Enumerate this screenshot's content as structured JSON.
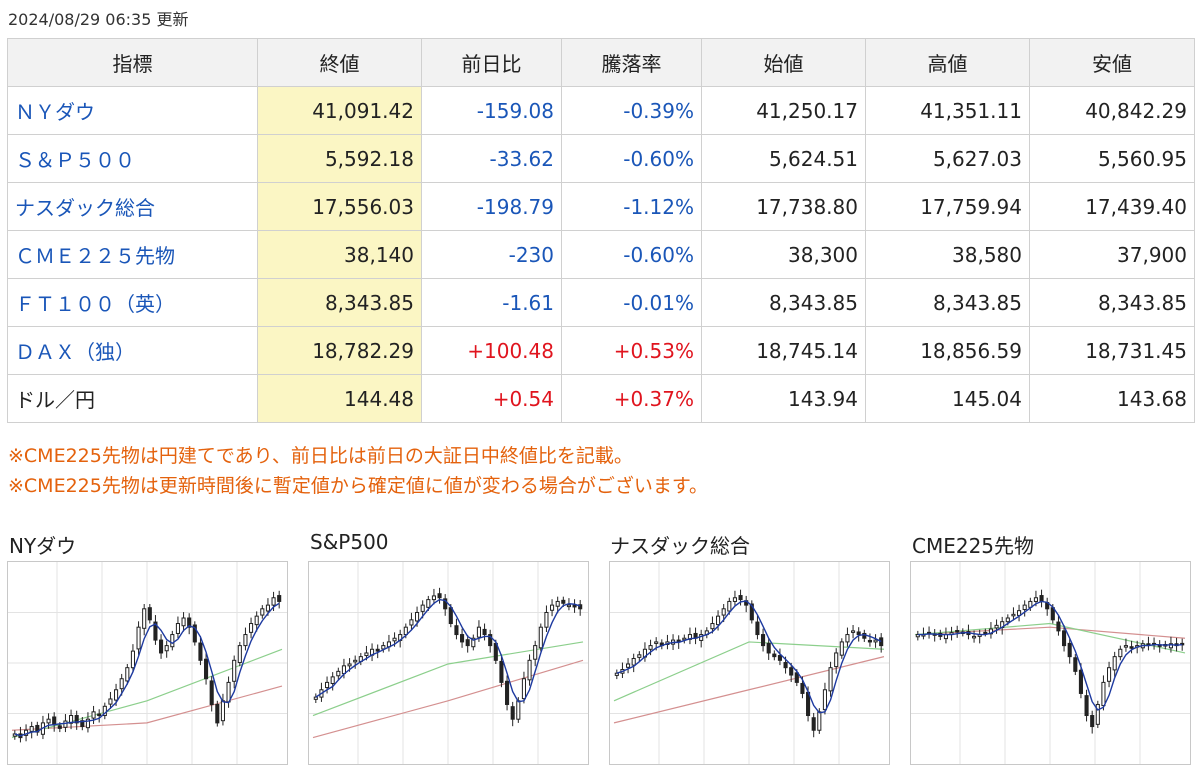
{
  "updated": "2024/08/29 06:35 更新",
  "table": {
    "headers": [
      "指標",
      "終値",
      "前日比",
      "騰落率",
      "始値",
      "高値",
      "安値"
    ],
    "rows": [
      {
        "name": "ＮＹダウ",
        "link": true,
        "close": "41,091.42",
        "change": "-159.08",
        "rate": "-0.39%",
        "open": "41,250.17",
        "high": "41,351.11",
        "low": "40,842.29",
        "dir": "neg"
      },
      {
        "name": "Ｓ＆Ｐ５００",
        "link": true,
        "close": "5,592.18",
        "change": "-33.62",
        "rate": "-0.60%",
        "open": "5,624.51",
        "high": "5,627.03",
        "low": "5,560.95",
        "dir": "neg"
      },
      {
        "name": "ナスダック総合",
        "link": true,
        "close": "17,556.03",
        "change": "-198.79",
        "rate": "-1.12%",
        "open": "17,738.80",
        "high": "17,759.94",
        "low": "17,439.40",
        "dir": "neg"
      },
      {
        "name": "ＣＭＥ２２５先物",
        "link": true,
        "close": "38,140",
        "change": "-230",
        "rate": "-0.60%",
        "open": "38,300",
        "high": "38,580",
        "low": "37,900",
        "dir": "neg"
      },
      {
        "name": "ＦＴ１００（英）",
        "link": true,
        "close": "8,343.85",
        "change": "-1.61",
        "rate": "-0.01%",
        "open": "8,343.85",
        "high": "8,343.85",
        "low": "8,343.85",
        "dir": "neg"
      },
      {
        "name": "ＤＡＸ（独）",
        "link": true,
        "close": "18,782.29",
        "change": "+100.48",
        "rate": "+0.53%",
        "open": "18,745.14",
        "high": "18,856.59",
        "low": "18,731.45",
        "dir": "pos"
      },
      {
        "name": "ドル／円",
        "link": false,
        "close": "144.48",
        "change": "+0.54",
        "rate": "+0.37%",
        "open": "143.94",
        "high": "145.04",
        "low": "143.68",
        "dir": "pos"
      }
    ]
  },
  "notes": [
    "※CME225先物は円建てであり、前日比は前日の大証日中終値比を記載。",
    "※CME225先物は更新時間後に暫定値から確定値に値が変わる場合がございます。"
  ],
  "charts": [
    {
      "title": "NYダウ",
      "closes": [
        0.12,
        0.1,
        0.14,
        0.16,
        0.13,
        0.18,
        0.2,
        0.17,
        0.15,
        0.19,
        0.22,
        0.18,
        0.16,
        0.2,
        0.24,
        0.22,
        0.27,
        0.31,
        0.36,
        0.42,
        0.48,
        0.57,
        0.7,
        0.8,
        0.74,
        0.63,
        0.56,
        0.6,
        0.66,
        0.72,
        0.75,
        0.7,
        0.62,
        0.52,
        0.42,
        0.28,
        0.18,
        0.3,
        0.4,
        0.52,
        0.6,
        0.66,
        0.72,
        0.76,
        0.8,
        0.82,
        0.86,
        0.84
      ],
      "ma_mid": [
        0.1,
        0.3,
        0.58
      ],
      "ma_long": [
        0.14,
        0.18,
        0.38
      ]
    },
    {
      "title": "S&P500",
      "closes": [
        0.32,
        0.36,
        0.4,
        0.43,
        0.46,
        0.49,
        0.5,
        0.52,
        0.54,
        0.56,
        0.58,
        0.57,
        0.6,
        0.62,
        0.64,
        0.66,
        0.7,
        0.74,
        0.78,
        0.82,
        0.85,
        0.87,
        0.86,
        0.8,
        0.72,
        0.66,
        0.62,
        0.6,
        0.64,
        0.7,
        0.66,
        0.6,
        0.52,
        0.4,
        0.28,
        0.2,
        0.3,
        0.42,
        0.52,
        0.6,
        0.7,
        0.78,
        0.82,
        0.84,
        0.83,
        0.82,
        0.81,
        0.8
      ],
      "ma_mid": [
        0.22,
        0.5,
        0.62
      ],
      "ma_long": [
        0.1,
        0.3,
        0.52
      ]
    },
    {
      "title": "ナスダック総合",
      "closes": [
        0.45,
        0.47,
        0.5,
        0.53,
        0.55,
        0.58,
        0.6,
        0.62,
        0.6,
        0.62,
        0.63,
        0.62,
        0.64,
        0.66,
        0.64,
        0.66,
        0.68,
        0.72,
        0.76,
        0.8,
        0.84,
        0.86,
        0.85,
        0.82,
        0.74,
        0.66,
        0.6,
        0.56,
        0.54,
        0.52,
        0.48,
        0.44,
        0.4,
        0.34,
        0.22,
        0.14,
        0.24,
        0.36,
        0.48,
        0.56,
        0.62,
        0.66,
        0.68,
        0.66,
        0.64,
        0.62,
        0.63,
        0.6
      ],
      "ma_mid": [
        0.3,
        0.62,
        0.58
      ],
      "ma_long": [
        0.18,
        0.36,
        0.54
      ]
    },
    {
      "title": "CME225先物",
      "closes": [
        0.66,
        0.66,
        0.67,
        0.66,
        0.65,
        0.66,
        0.67,
        0.68,
        0.67,
        0.66,
        0.65,
        0.66,
        0.67,
        0.69,
        0.71,
        0.73,
        0.75,
        0.77,
        0.79,
        0.82,
        0.84,
        0.86,
        0.84,
        0.8,
        0.74,
        0.68,
        0.6,
        0.54,
        0.46,
        0.34,
        0.22,
        0.16,
        0.28,
        0.4,
        0.48,
        0.54,
        0.58,
        0.6,
        0.59,
        0.6,
        0.61,
        0.6,
        0.61,
        0.6,
        0.6,
        0.61,
        0.6,
        0.61
      ],
      "ma_mid": [
        0.66,
        0.72,
        0.56
      ],
      "ma_long": [
        0.66,
        0.7,
        0.64
      ]
    }
  ],
  "colors": {
    "candle": "#222222",
    "ma_short": "#1e3aa0",
    "ma_mid": "#8ccf8c",
    "ma_long": "#d49090",
    "grid": "#e3e3e3"
  }
}
